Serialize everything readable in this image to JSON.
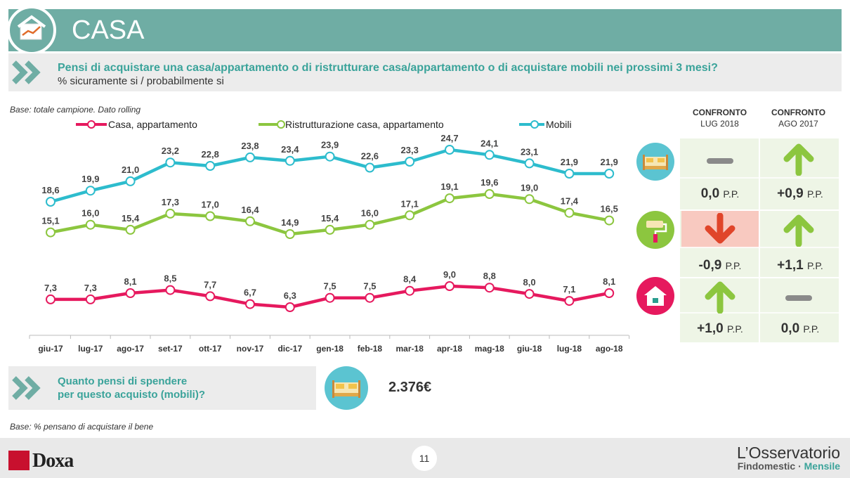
{
  "header": {
    "title": "CASA"
  },
  "question": {
    "title": "Pensi di acquistare una casa/appartamento o di ristrutturare casa/appartamento o di acquistare mobili nei prossimi 3 mesi?",
    "subtitle": "% sicuramente si / probabilmente si"
  },
  "base_note": "Base: totale campione. Dato rolling",
  "chart_data": {
    "type": "line",
    "categories": [
      "giu-17",
      "lug-17",
      "ago-17",
      "set-17",
      "ott-17",
      "nov-17",
      "dic-17",
      "gen-18",
      "feb-18",
      "mar-18",
      "apr-18",
      "mag-18",
      "giu-18",
      "lug-18",
      "ago-18"
    ],
    "series": [
      {
        "name": "Casa, appartamento",
        "color": "#e6195e",
        "values": [
          7.3,
          7.3,
          8.1,
          8.5,
          7.7,
          6.7,
          6.3,
          7.5,
          7.5,
          8.4,
          9.0,
          8.8,
          8.0,
          7.1,
          8.1
        ],
        "labels": [
          "7,3",
          "7,3",
          "8,1",
          "8,5",
          "7,7",
          "6,7",
          "6,3",
          "7,5",
          "7,5",
          "8,4",
          "9,0",
          "8,8",
          "8,0",
          "7,1",
          "8,1"
        ]
      },
      {
        "name": "Ristrutturazione casa, appartamento",
        "color": "#8cc63f",
        "values": [
          15.1,
          16.0,
          15.4,
          17.3,
          17.0,
          16.4,
          14.9,
          15.4,
          16.0,
          17.1,
          19.1,
          19.6,
          19.0,
          17.4,
          16.5
        ],
        "labels": [
          "15,1",
          "16,0",
          "15,4",
          "17,3",
          "17,0",
          "16,4",
          "14,9",
          "15,4",
          "16,0",
          "17,1",
          "19,1",
          "19,6",
          "19,0",
          "17,4",
          "16,5"
        ]
      },
      {
        "name": "Mobili",
        "color": "#2dbccd",
        "values": [
          18.6,
          19.9,
          21.0,
          23.2,
          22.8,
          23.8,
          23.4,
          23.9,
          22.6,
          23.3,
          24.7,
          24.1,
          23.1,
          21.9,
          21.9
        ],
        "labels": [
          "18,6",
          "19,9",
          "21,0",
          "23,2",
          "22,8",
          "23,8",
          "23,4",
          "23,9",
          "22,6",
          "23,3",
          "24,7",
          "24,1",
          "23,1",
          "21,9",
          "21,9"
        ]
      }
    ],
    "legend": "top"
  },
  "comparison": {
    "headers": [
      {
        "line1": "CONFRONTO",
        "line2": "LUG 2018"
      },
      {
        "line1": "CONFRONTO",
        "line2": "AGO 2017"
      }
    ],
    "unit": "P.P.",
    "rows": [
      {
        "item": "Mobili",
        "icon": "bed-icon",
        "values": [
          {
            "value": "0,0",
            "trend": "flat"
          },
          {
            "value": "+0,9",
            "trend": "up"
          }
        ]
      },
      {
        "item": "Ristrutturazione casa, appartamento",
        "icon": "paint-roller-icon",
        "values": [
          {
            "value": "-0,9",
            "trend": "down"
          },
          {
            "value": "+1,1",
            "trend": "up"
          }
        ]
      },
      {
        "item": "Casa, appartamento",
        "icon": "house-icon",
        "values": [
          {
            "value": "+1,0",
            "trend": "up"
          },
          {
            "value": "0,0",
            "trend": "flat"
          }
        ]
      }
    ]
  },
  "spend": {
    "question": [
      "Quanto pensi di spendere",
      "per questo acquisto (mobili)?"
    ],
    "value": "2.376€"
  },
  "base_note2": "Base: % pensano di acquistare il bene",
  "footer": {
    "brand": "Doxa",
    "page": "11",
    "oss_title": "L’Osservatorio",
    "oss_sub1": "Findomestic · ",
    "oss_sub2": "Mensile"
  }
}
